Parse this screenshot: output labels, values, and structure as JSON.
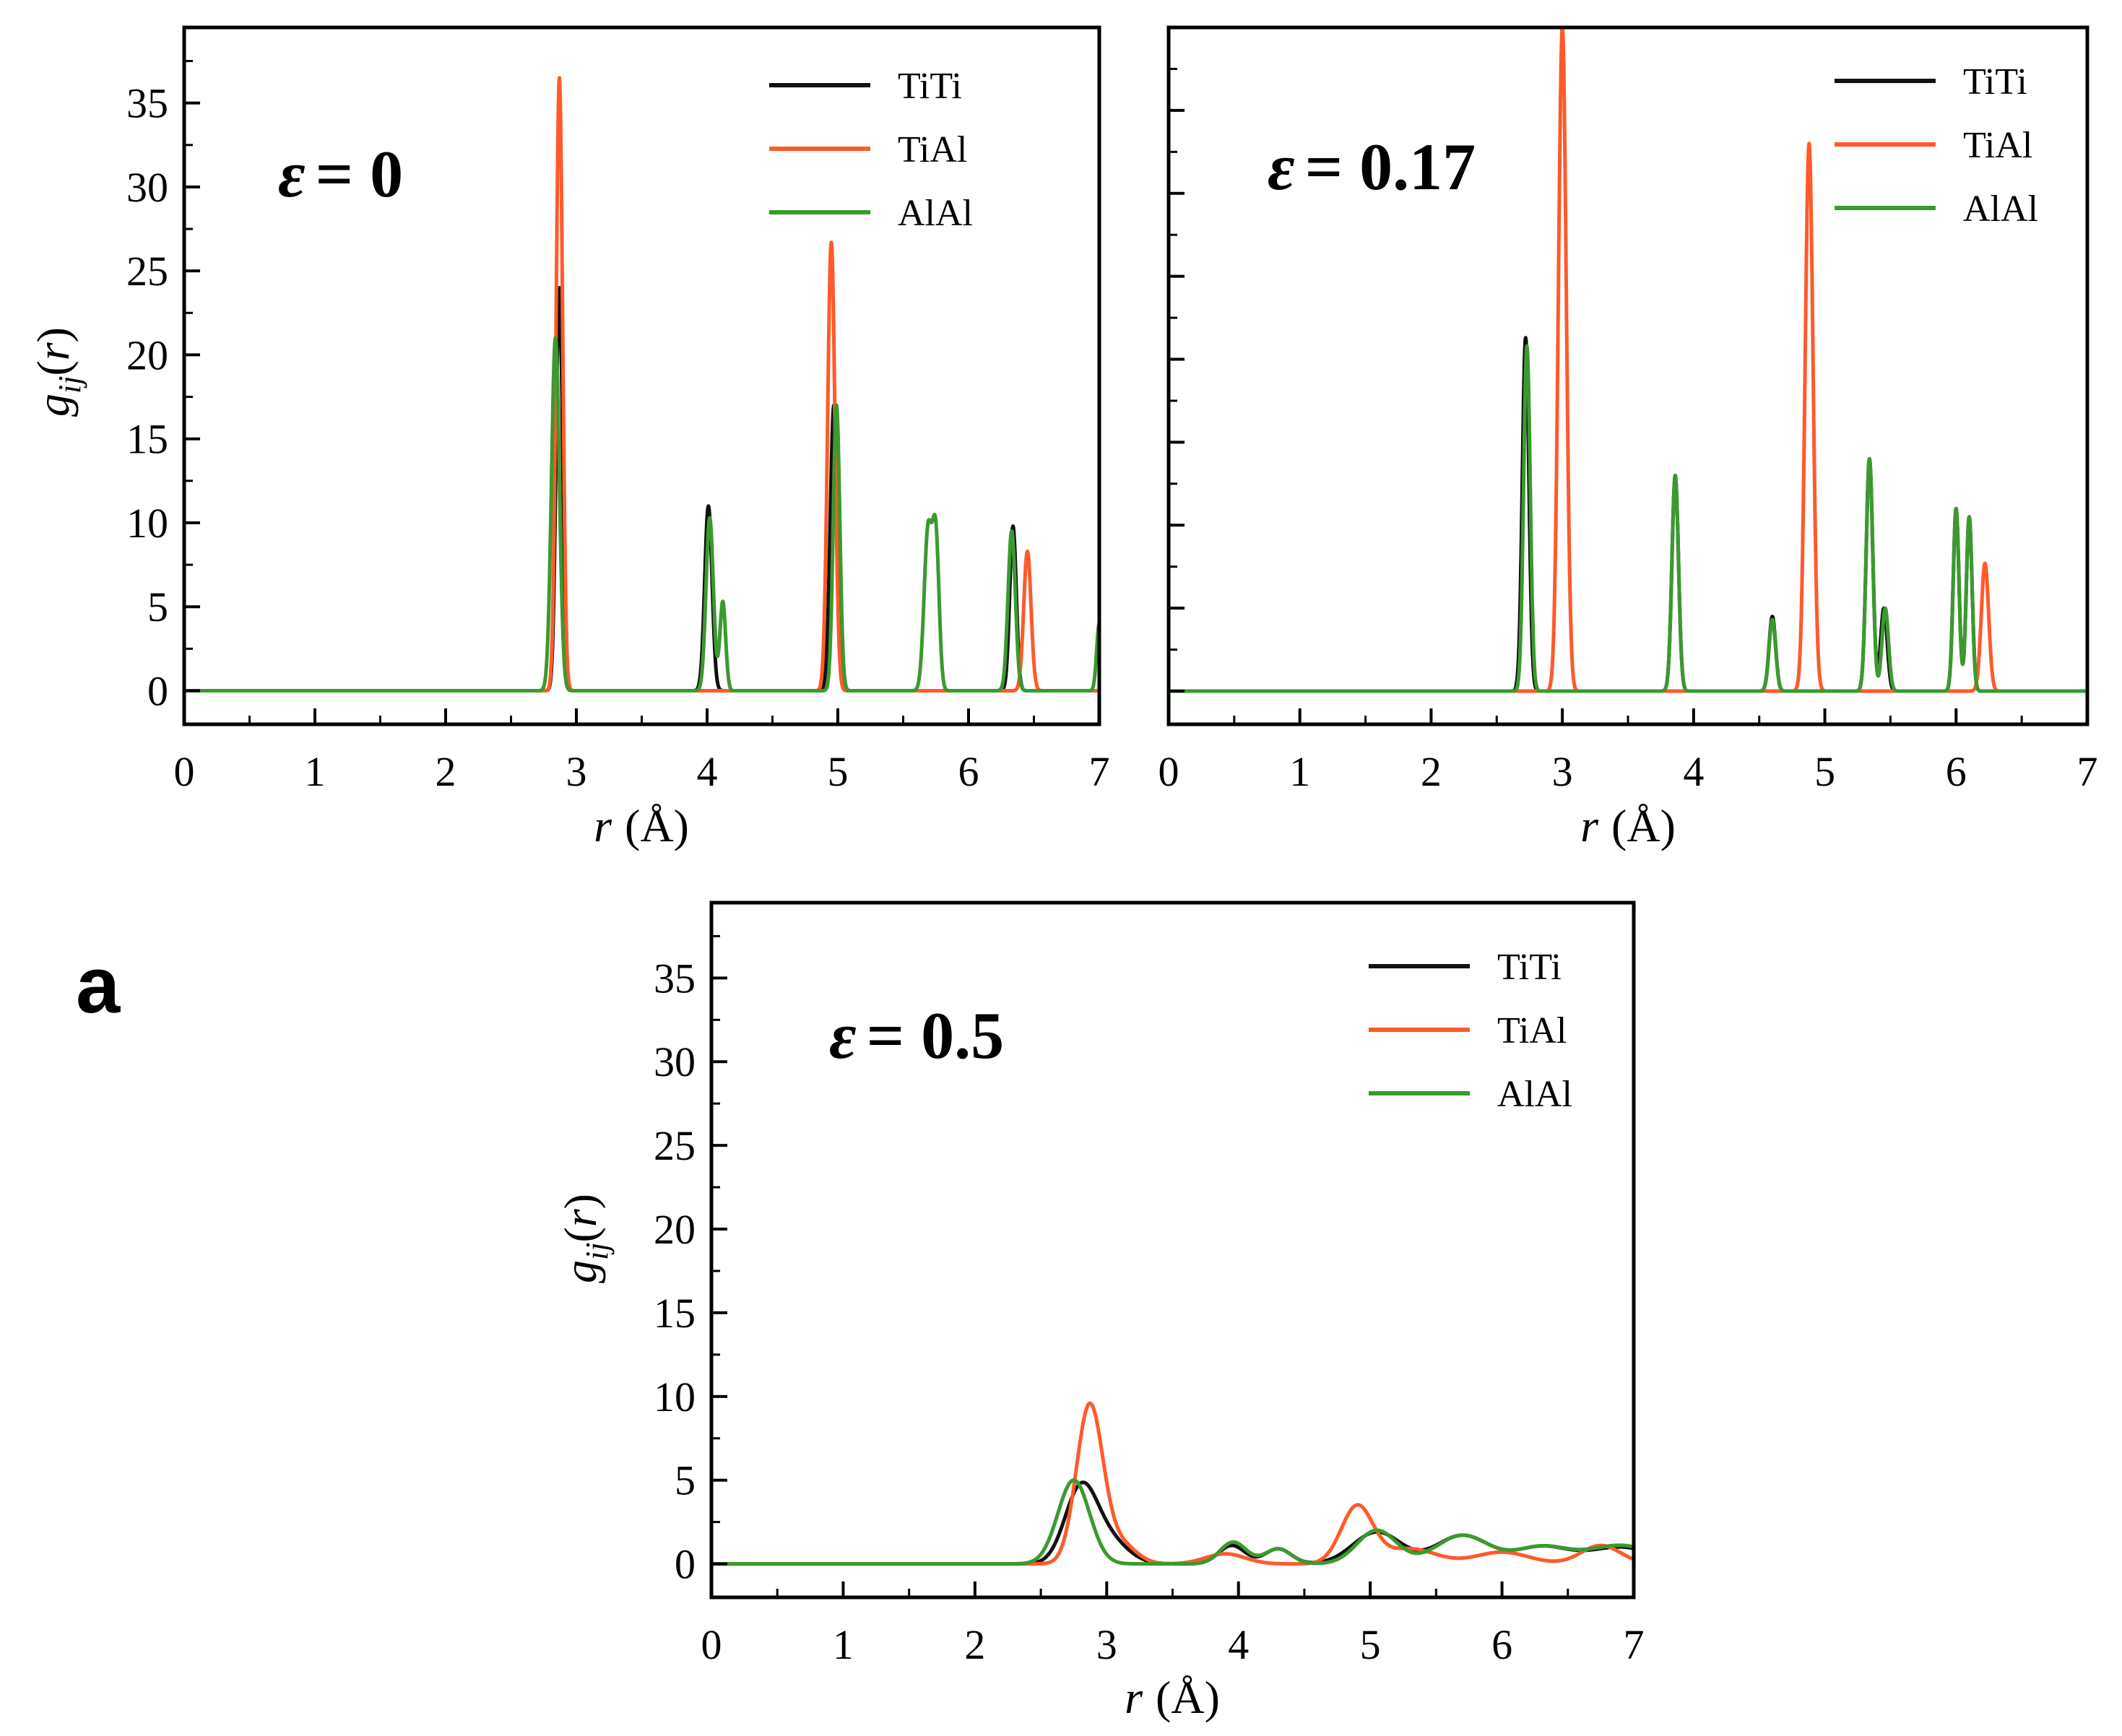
{
  "panel_letter": "a",
  "colors": {
    "TiTi": "#111111",
    "TiAl": "#ff5a2a",
    "AlAl": "#3a9a2e"
  },
  "chart_data": [
    {
      "type": "line",
      "title": "ε = 0",
      "epsilon_symbol": "ε",
      "epsilon_value": "= 0",
      "xlabel": "r (Å)",
      "ylabel": "g_ij(r)",
      "xlim": [
        0,
        7
      ],
      "ylim": [
        -2,
        39.5
      ],
      "xticks": [
        0,
        1,
        2,
        3,
        4,
        5,
        6,
        7
      ],
      "yticks": [
        0,
        5,
        10,
        15,
        20,
        25,
        30,
        35
      ],
      "legend_position": "top-right",
      "series": [
        {
          "name": "TiTi",
          "peaks": [
            [
              2.87,
              24,
              0.025
            ],
            [
              4.01,
              11,
              0.028
            ],
            [
              4.97,
              17,
              0.028
            ],
            [
              6.34,
              9.8,
              0.025
            ]
          ]
        },
        {
          "name": "TiAl",
          "peaks": [
            [
              2.87,
              36.5,
              0.025
            ],
            [
              4.95,
              26.7,
              0.028
            ],
            [
              6.45,
              8.3,
              0.028
            ]
          ]
        },
        {
          "name": "AlAl",
          "peaks": [
            [
              2.84,
              21,
              0.03
            ],
            [
              4.02,
              10.3,
              0.028
            ],
            [
              4.12,
              5.3,
              0.022
            ],
            [
              4.99,
              17,
              0.025
            ],
            [
              5.69,
              9.5,
              0.03
            ],
            [
              5.75,
              8.8,
              0.025
            ],
            [
              6.33,
              9.5,
              0.028
            ],
            [
              7.0,
              4,
              0.02
            ]
          ]
        }
      ]
    },
    {
      "type": "line",
      "title": "ε = 0.17",
      "epsilon_symbol": "ε",
      "epsilon_value": "= 0.17",
      "xlabel": "r (Å)",
      "ylabel": "",
      "xlim": [
        0,
        7
      ],
      "ylim": [
        -2,
        40
      ],
      "xticks": [
        0,
        1,
        2,
        3,
        4,
        5,
        6,
        7
      ],
      "yticks": [
        0,
        5,
        10,
        15,
        20,
        25,
        30,
        35
      ],
      "legend_position": "top-right",
      "series": [
        {
          "name": "TiTi",
          "peaks": [
            [
              2.72,
              21.3,
              0.025
            ],
            [
              3.86,
              13,
              0.025
            ],
            [
              4.6,
              4.5,
              0.025
            ],
            [
              5.34,
              14,
              0.025
            ],
            [
              5.45,
              5,
              0.025
            ],
            [
              6.0,
              11,
              0.022
            ],
            [
              6.1,
              10.5,
              0.022
            ]
          ]
        },
        {
          "name": "TiAl",
          "peaks": [
            [
              3.0,
              40,
              0.03
            ],
            [
              4.88,
              33,
              0.03
            ],
            [
              6.22,
              7.7,
              0.028
            ]
          ]
        },
        {
          "name": "AlAl",
          "peaks": [
            [
              2.73,
              20.8,
              0.025
            ],
            [
              3.86,
              13,
              0.025
            ],
            [
              4.6,
              4.3,
              0.025
            ],
            [
              5.34,
              14,
              0.025
            ],
            [
              5.46,
              5,
              0.025
            ],
            [
              6.0,
              11,
              0.022
            ],
            [
              6.1,
              10.5,
              0.022
            ]
          ]
        }
      ]
    },
    {
      "type": "line",
      "title": "ε = 0.5",
      "epsilon_symbol": "ε",
      "epsilon_value": "= 0.5",
      "xlabel": "r (Å)",
      "ylabel": "g_ij(r)",
      "xlim": [
        0,
        7
      ],
      "ylim": [
        -2,
        39.5
      ],
      "xticks": [
        0,
        1,
        2,
        3,
        4,
        5,
        6,
        7
      ],
      "yticks": [
        0,
        5,
        10,
        15,
        20,
        25,
        30,
        35
      ],
      "legend_position": "top-right",
      "series": [
        {
          "name": "TiTi",
          "peaks": [
            [
              2.8,
              4.2,
              0.12
            ],
            [
              3.0,
              1.5,
              0.15
            ],
            [
              3.95,
              1.1,
              0.1
            ],
            [
              4.3,
              0.9,
              0.1
            ],
            [
              5.05,
              1.9,
              0.18
            ],
            [
              5.7,
              1.7,
              0.2
            ],
            [
              6.3,
              1.0,
              0.2
            ],
            [
              6.9,
              1.0,
              0.25
            ]
          ]
        },
        {
          "name": "TiAl",
          "peaks": [
            [
              2.87,
              9.4,
              0.1
            ],
            [
              3.1,
              1.2,
              0.12
            ],
            [
              3.9,
              0.6,
              0.15
            ],
            [
              4.9,
              3.4,
              0.12
            ],
            [
              5.3,
              0.9,
              0.2
            ],
            [
              6.0,
              0.7,
              0.2
            ],
            [
              6.75,
              1.1,
              0.15
            ]
          ]
        },
        {
          "name": "AlAl",
          "peaks": [
            [
              2.75,
              5.0,
              0.12
            ],
            [
              3.96,
              1.3,
              0.1
            ],
            [
              4.3,
              0.9,
              0.1
            ],
            [
              5.05,
              2.0,
              0.15
            ],
            [
              5.7,
              1.7,
              0.2
            ],
            [
              6.3,
              1.0,
              0.2
            ],
            [
              6.9,
              1.1,
              0.25
            ]
          ]
        }
      ]
    }
  ]
}
